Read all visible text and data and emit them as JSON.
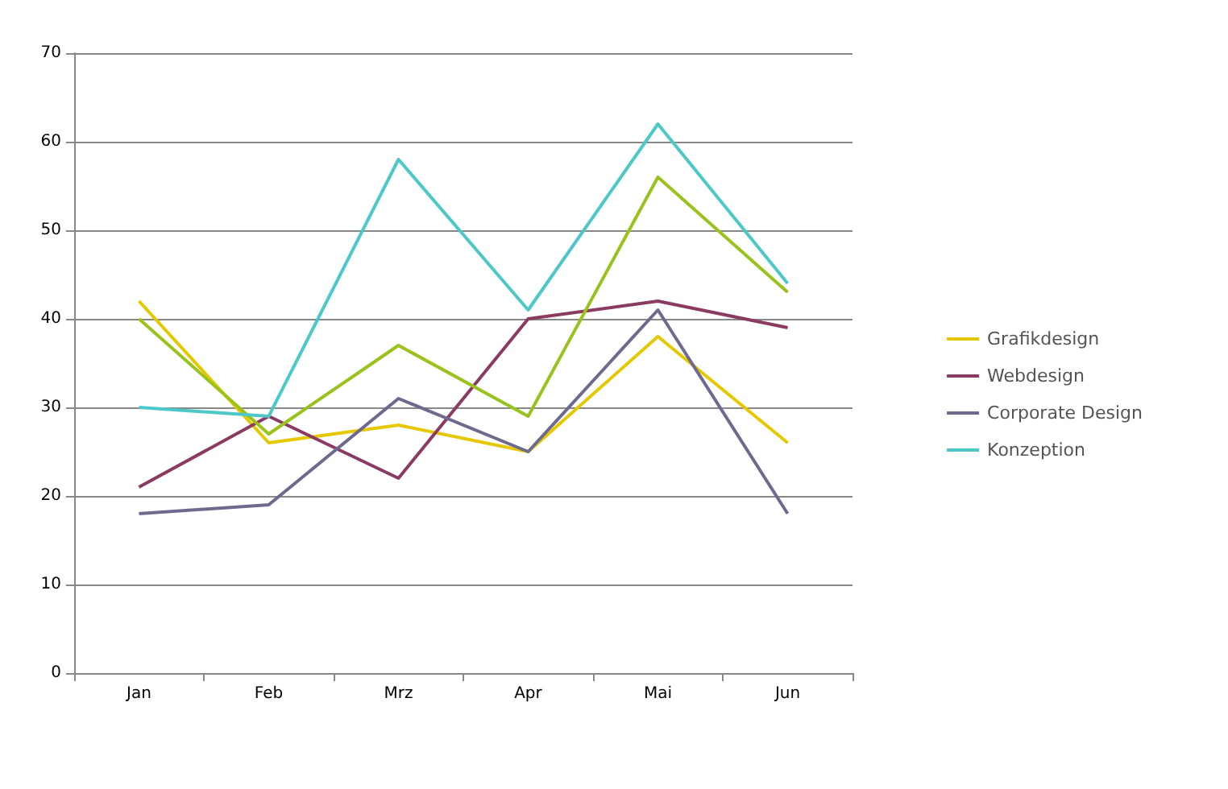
{
  "chart_data": {
    "type": "line",
    "categories": [
      "Jan",
      "Feb",
      "Mrz",
      "Apr",
      "Mai",
      "Jun"
    ],
    "series": [
      {
        "name": "Grafikdesign",
        "color": "#e6c800",
        "values": [
          42,
          26,
          28,
          25,
          38,
          26
        ]
      },
      {
        "name": "Webdesign",
        "color": "#8b3a62",
        "values": [
          21,
          29,
          22,
          40,
          42,
          39
        ]
      },
      {
        "color": "#99c31c",
        "values": [
          40,
          27,
          37,
          29,
          56,
          43
        ]
      },
      {
        "name": "Corporate Design",
        "color": "#6e6a8e",
        "values": [
          18,
          19,
          31,
          25,
          41,
          18
        ]
      },
      {
        "name": "Konzeption",
        "color": "#4cc8c8",
        "values": [
          30,
          29,
          58,
          41,
          62,
          44
        ]
      }
    ],
    "ylim": [
      0,
      70
    ],
    "yticks": [
      0,
      10,
      20,
      30,
      40,
      50,
      60,
      70
    ],
    "grid": "y",
    "legend": "right",
    "marker": "none",
    "line_style": "solid"
  }
}
